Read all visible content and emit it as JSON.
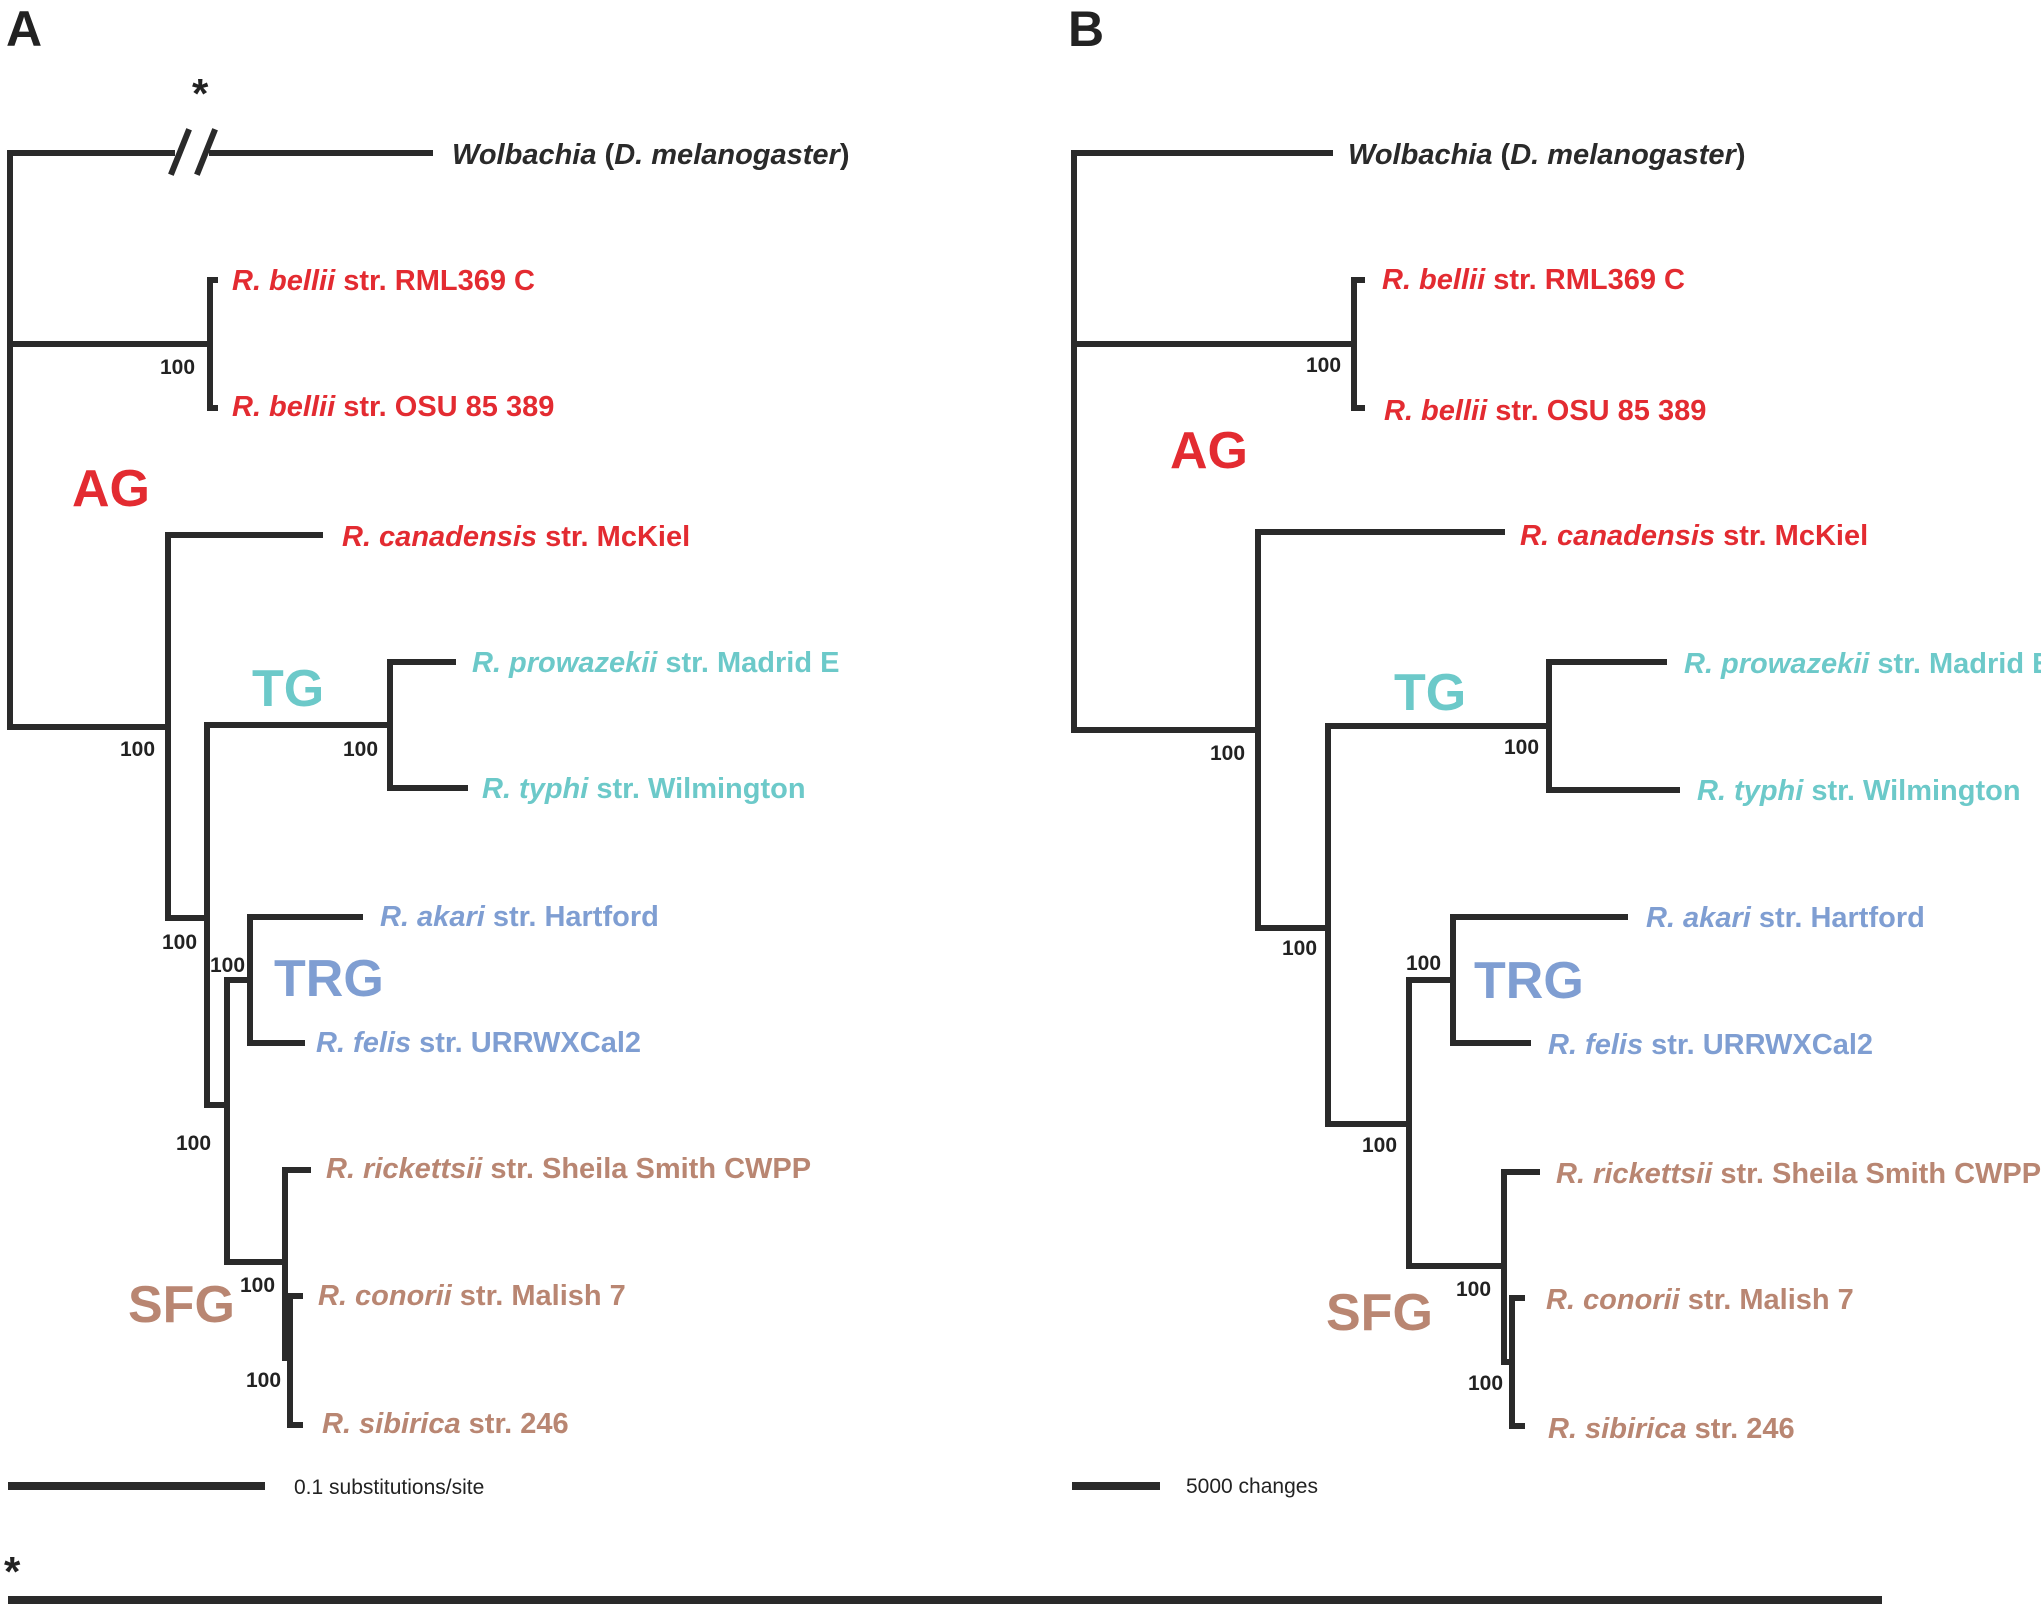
{
  "panels": {
    "a_label": "A",
    "b_label": "B"
  },
  "colors": {
    "ag": "#e32b31",
    "tg": "#6cc9c9",
    "trg": "#7f9ed2",
    "sfg": "#b98672",
    "outgroup": "#2a2a2a"
  },
  "groups": {
    "ag": "AG",
    "tg": "TG",
    "trg": "TRG",
    "sfg": "SFG"
  },
  "taxa": [
    {
      "species": "Wolbachia",
      "extra_pre": " (",
      "extra_italic": "D. melanogaster",
      "extra_post": ")",
      "strain": ""
    },
    {
      "species": "R. bellii",
      "strain": " str. RML369 C"
    },
    {
      "species": "R. bellii",
      "strain": " str. OSU 85 389"
    },
    {
      "species": "R. canadensis",
      "strain": " str. McKiel"
    },
    {
      "species": "R. prowazekii",
      "strain": " str. Madrid E"
    },
    {
      "species": "R. typhi",
      "strain": " str. Wilmington"
    },
    {
      "species": "R. akari",
      "strain": " str. Hartford"
    },
    {
      "species": "R. felis",
      "strain": " str. URRWXCal2"
    },
    {
      "species": "R. rickettsii",
      "strain": " str. Sheila Smith CWPP"
    },
    {
      "species": "R. conorii",
      "strain": " str. Malish 7"
    },
    {
      "species": "R. sibirica",
      "strain": " str. 246"
    }
  ],
  "support": "100",
  "break_marker": "*",
  "scale_a": "0.1 substitutions/site",
  "scale_b": "5000 changes",
  "footnote_marker": "*"
}
